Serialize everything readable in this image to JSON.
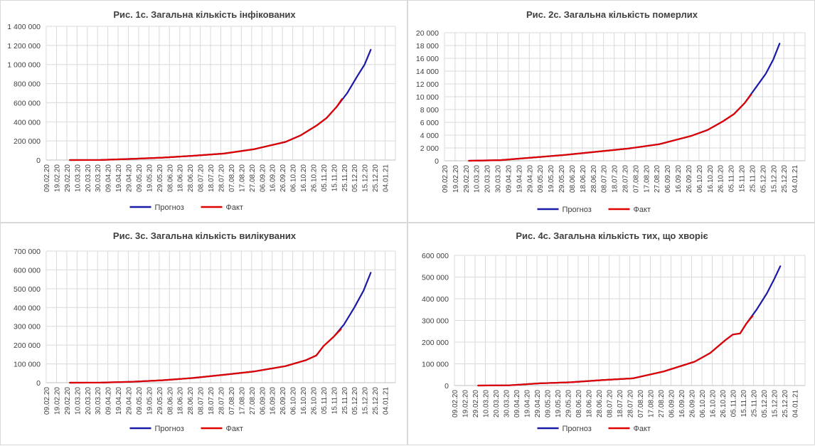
{
  "colors": {
    "forecast": "#1a1aa8",
    "fact": "#e00000",
    "grid": "#d9d9d9",
    "text": "#404040"
  },
  "legend": {
    "forecast": "Прогноз",
    "fact": "Факт"
  },
  "x_ticks": [
    "09.02.20",
    "19.02.20",
    "29.02.20",
    "10.03.20",
    "20.03.20",
    "30.03.20",
    "09.04.20",
    "19.04.20",
    "29.04.20",
    "09.05.20",
    "19.05.20",
    "29.05.20",
    "08.06.20",
    "18.06.20",
    "28.06.20",
    "08.07.20",
    "18.07.20",
    "28.07.20",
    "07.08.20",
    "17.08.20",
    "27.08.20",
    "06.09.20",
    "16.09.20",
    "26.09.20",
    "06.10.20",
    "16.10.20",
    "26.10.20",
    "05.11.20",
    "15.11.20",
    "25.11.20",
    "05.12.20",
    "15.12.20",
    "25.12.20",
    "04.01.21"
  ],
  "chart_data": [
    {
      "id": "c1",
      "type": "line",
      "title": "Рис. 1с. Загальна кількість інфікованих",
      "x_is_day_index_from": "09.02.20",
      "ylim": [
        0,
        1400000
      ],
      "y_ticks": [
        "0",
        "200 000",
        "400 000",
        "600 000",
        "800 000",
        "1 000 000",
        "1 200 000",
        "1 400 000"
      ],
      "series": [
        {
          "name": "Прогноз",
          "x": [
            "03.03.20",
            "02.04.20",
            "02.05.20",
            "01.06.20",
            "01.07.20",
            "31.07.20",
            "30.08.20",
            "29.09.20",
            "14.10.20",
            "29.10.20",
            "08.11.20",
            "18.11.20",
            "28.11.20",
            "08.12.20",
            "15.12.20",
            "21.12.20"
          ],
          "values": [
            0,
            800,
            12000,
            25000,
            45000,
            68000,
            115000,
            190000,
            260000,
            360000,
            440000,
            560000,
            700000,
            880000,
            1000000,
            1155000
          ]
        },
        {
          "name": "Факт",
          "x": [
            "03.03.20",
            "02.04.20",
            "02.05.20",
            "01.06.20",
            "01.07.20",
            "31.07.20",
            "30.08.20",
            "29.09.20",
            "14.10.20",
            "29.10.20",
            "08.11.20",
            "18.11.20",
            "23.11.20"
          ],
          "values": [
            0,
            800,
            12000,
            25000,
            45000,
            68000,
            115000,
            190000,
            260000,
            360000,
            440000,
            560000,
            640000
          ]
        }
      ]
    },
    {
      "id": "c2",
      "type": "line",
      "title": "Рис. 2с. Загальна кількість померлих",
      "x_is_day_index_from": "09.02.20",
      "ylim": [
        0,
        20000
      ],
      "y_ticks": [
        "0",
        "2 000",
        "4 000",
        "6 000",
        "8 000",
        "10 000",
        "12 000",
        "14 000",
        "16 000",
        "18 000",
        "20 000"
      ],
      "series": [
        {
          "name": "Прогноз",
          "x": [
            "03.03.20",
            "02.04.20",
            "02.05.20",
            "01.06.20",
            "01.07.20",
            "31.07.20",
            "30.08.20",
            "29.09.20",
            "14.10.20",
            "29.10.20",
            "08.11.20",
            "18.11.20",
            "28.11.20",
            "08.12.20",
            "15.12.20",
            "21.12.20"
          ],
          "values": [
            0,
            100,
            500,
            900,
            1400,
            1900,
            2600,
            3900,
            4800,
            6200,
            7300,
            9000,
            11300,
            13600,
            15800,
            18300
          ]
        },
        {
          "name": "Факт",
          "x": [
            "03.03.20",
            "02.04.20",
            "02.05.20",
            "01.06.20",
            "01.07.20",
            "31.07.20",
            "30.08.20",
            "29.09.20",
            "14.10.20",
            "29.10.20",
            "08.11.20",
            "18.11.20",
            "24.11.20"
          ],
          "values": [
            0,
            100,
            500,
            900,
            1400,
            1900,
            2600,
            3900,
            4800,
            6200,
            7300,
            9000,
            10300
          ]
        }
      ]
    },
    {
      "id": "c3",
      "type": "line",
      "title": "Рис. 3с. Загальна кількість вилікуваних",
      "x_is_day_index_from": "09.02.20",
      "ylim": [
        0,
        700000
      ],
      "y_ticks": [
        "0",
        "100 000",
        "200 000",
        "300 000",
        "400 000",
        "500 000",
        "600 000",
        "700 000"
      ],
      "series": [
        {
          "name": "Прогноз",
          "x": [
            "03.03.20",
            "02.04.20",
            "02.05.20",
            "01.06.20",
            "01.07.20",
            "31.07.20",
            "30.08.20",
            "29.09.20",
            "19.10.20",
            "29.10.20",
            "05.11.20",
            "15.11.20",
            "25.11.20",
            "05.12.20",
            "14.12.20",
            "21.12.20"
          ],
          "values": [
            0,
            200,
            5000,
            13000,
            25000,
            42000,
            60000,
            88000,
            120000,
            145000,
            195000,
            245000,
            310000,
            400000,
            490000,
            585000
          ]
        },
        {
          "name": "Факт",
          "x": [
            "03.03.20",
            "02.04.20",
            "02.05.20",
            "01.06.20",
            "01.07.20",
            "31.07.20",
            "30.08.20",
            "29.09.20",
            "19.10.20",
            "29.10.20",
            "05.11.20",
            "15.11.20",
            "22.11.20"
          ],
          "values": [
            0,
            200,
            5000,
            13000,
            25000,
            42000,
            60000,
            88000,
            120000,
            145000,
            195000,
            245000,
            285000
          ]
        }
      ]
    },
    {
      "id": "c4",
      "type": "line",
      "title": "Рис. 4с. Загальна кількість тих, що хворіє",
      "x_is_day_index_from": "09.02.20",
      "ylim": [
        0,
        600000
      ],
      "y_ticks": [
        "0",
        "100 000",
        "200 000",
        "300 000",
        "400 000",
        "500 000",
        "600 000"
      ],
      "series": [
        {
          "name": "Прогноз",
          "x": [
            "03.03.20",
            "02.04.20",
            "02.05.20",
            "01.06.20",
            "01.07.20",
            "31.07.20",
            "30.08.20",
            "29.09.20",
            "14.10.20",
            "29.10.20",
            "05.11.20",
            "12.11.20",
            "18.11.20",
            "28.11.20",
            "08.12.20",
            "15.12.20",
            "21.12.20"
          ],
          "values": [
            0,
            1000,
            10000,
            15000,
            25000,
            33000,
            65000,
            110000,
            150000,
            210000,
            235000,
            240000,
            285000,
            350000,
            425000,
            490000,
            550000
          ]
        },
        {
          "name": "Факт",
          "x": [
            "03.03.20",
            "02.04.20",
            "02.05.20",
            "01.06.20",
            "01.07.20",
            "31.07.20",
            "30.08.20",
            "29.09.20",
            "14.10.20",
            "29.10.20",
            "05.11.20",
            "12.11.20",
            "18.11.20",
            "24.11.20"
          ],
          "values": [
            0,
            1000,
            10000,
            15000,
            25000,
            33000,
            65000,
            110000,
            150000,
            210000,
            235000,
            240000,
            285000,
            320000
          ]
        }
      ]
    }
  ]
}
